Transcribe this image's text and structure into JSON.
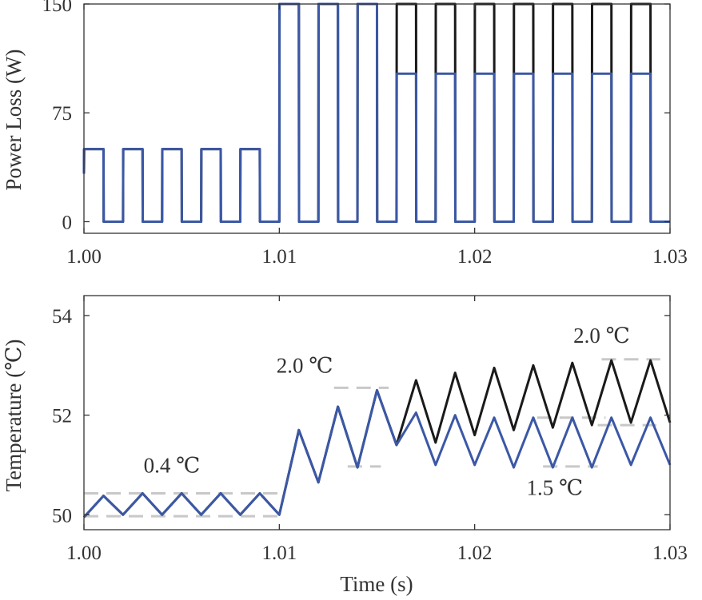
{
  "chart_data": [
    {
      "type": "line",
      "title": "",
      "xlabel": "",
      "ylabel": "Power Loss (W)",
      "xlim": [
        1.0,
        1.03
      ],
      "ylim": [
        -8,
        150
      ],
      "xticks": [
        1.0,
        1.01,
        1.02,
        1.03
      ],
      "xtick_labels": [
        "1.00",
        "1.01",
        "1.02",
        "1.03"
      ],
      "yticks": [
        0,
        75,
        150
      ],
      "ytick_labels": [
        "0",
        "75",
        "150"
      ],
      "grid": false,
      "series": [
        {
          "color": "#1a1a1a",
          "description": "square-wave power loss, high portion (150 W pulses) after t = 1.016 s",
          "x": [
            1.0,
            1.00001,
            1.001,
            1.00101,
            1.002,
            1.00201,
            1.003,
            1.00301,
            1.004,
            1.00401,
            1.005,
            1.00501,
            1.006,
            1.00601,
            1.007,
            1.00701,
            1.008,
            1.00801,
            1.009,
            1.00901,
            1.01,
            1.01001,
            1.011,
            1.01101,
            1.012,
            1.01201,
            1.013,
            1.01301,
            1.014,
            1.01401,
            1.015,
            1.01501,
            1.016,
            1.01601,
            1.017,
            1.01701,
            1.018,
            1.01801,
            1.019,
            1.01901,
            1.02,
            1.02001,
            1.021,
            1.02101,
            1.022,
            1.02201,
            1.023,
            1.02301,
            1.024,
            1.02401,
            1.025,
            1.02501,
            1.026,
            1.02601,
            1.027,
            1.02701,
            1.028,
            1.02801,
            1.029,
            1.02901,
            1.03
          ],
          "y": [
            33,
            50,
            50,
            0,
            0,
            50,
            50,
            0,
            0,
            50,
            50,
            0,
            0,
            50,
            50,
            0,
            0,
            50,
            50,
            0,
            0,
            150,
            150,
            0,
            0,
            150,
            150,
            0,
            0,
            150,
            150,
            0,
            0,
            150,
            150,
            0,
            0,
            150,
            150,
            0,
            0,
            150,
            150,
            0,
            0,
            150,
            150,
            0,
            0,
            150,
            150,
            0,
            0,
            150,
            150,
            0,
            0,
            150,
            150,
            0,
            0
          ]
        },
        {
          "color": "#3b58a6",
          "description": "square-wave power loss, 100 W pulses after t = 1.016 s",
          "x": [
            1.0,
            1.00001,
            1.001,
            1.00101,
            1.002,
            1.00201,
            1.003,
            1.00301,
            1.004,
            1.00401,
            1.005,
            1.00501,
            1.006,
            1.00601,
            1.007,
            1.00701,
            1.008,
            1.00801,
            1.009,
            1.00901,
            1.01,
            1.01001,
            1.011,
            1.01101,
            1.012,
            1.01201,
            1.013,
            1.01301,
            1.014,
            1.01401,
            1.015,
            1.01501,
            1.016,
            1.01601,
            1.017,
            1.01701,
            1.018,
            1.01801,
            1.019,
            1.01901,
            1.02,
            1.02001,
            1.021,
            1.02101,
            1.022,
            1.02201,
            1.023,
            1.02301,
            1.024,
            1.02401,
            1.025,
            1.02501,
            1.026,
            1.02601,
            1.027,
            1.02701,
            1.028,
            1.02801,
            1.029,
            1.02901,
            1.03
          ],
          "y": [
            33,
            50,
            50,
            0,
            0,
            50,
            50,
            0,
            0,
            50,
            50,
            0,
            0,
            50,
            50,
            0,
            0,
            50,
            50,
            0,
            0,
            150,
            150,
            0,
            0,
            150,
            150,
            0,
            0,
            150,
            150,
            0,
            0,
            102,
            102,
            0,
            0,
            102,
            102,
            0,
            0,
            102,
            102,
            0,
            0,
            102,
            102,
            0,
            0,
            102,
            102,
            0,
            0,
            102,
            102,
            0,
            0,
            102,
            102,
            0,
            0
          ]
        }
      ]
    },
    {
      "type": "line",
      "title": "",
      "xlabel": "Time (s)",
      "ylabel": "Temperature (℃)",
      "xlim": [
        1.0,
        1.03
      ],
      "ylim": [
        49.7,
        54.4
      ],
      "xticks": [
        1.0,
        1.01,
        1.02,
        1.03
      ],
      "xtick_labels": [
        "1.00",
        "1.01",
        "1.02",
        "1.03"
      ],
      "yticks": [
        50,
        52,
        54
      ],
      "ytick_labels": [
        "50",
        "52",
        "54"
      ],
      "grid": false,
      "series": [
        {
          "color": "#1a1a1a",
          "description": "junction temperature, black case",
          "x": [
            1.0,
            1.001,
            1.002,
            1.003,
            1.004,
            1.005,
            1.006,
            1.007,
            1.008,
            1.009,
            1.01,
            1.011,
            1.012,
            1.013,
            1.014,
            1.015,
            1.016,
            1.017,
            1.018,
            1.019,
            1.02,
            1.021,
            1.022,
            1.023,
            1.024,
            1.025,
            1.026,
            1.027,
            1.028,
            1.029,
            1.03
          ],
          "y": [
            49.95,
            50.38,
            50.0,
            50.43,
            50.0,
            50.43,
            50.0,
            50.43,
            50.0,
            50.43,
            50.0,
            51.7,
            50.65,
            52.17,
            50.95,
            52.5,
            51.4,
            52.7,
            51.45,
            52.85,
            51.6,
            52.95,
            51.7,
            53.0,
            51.75,
            53.05,
            51.8,
            53.1,
            51.85,
            53.1,
            51.85
          ]
        },
        {
          "color": "#3b58a6",
          "description": "junction temperature, blue case",
          "x": [
            1.0,
            1.001,
            1.002,
            1.003,
            1.004,
            1.005,
            1.006,
            1.007,
            1.008,
            1.009,
            1.01,
            1.011,
            1.012,
            1.013,
            1.014,
            1.015,
            1.016,
            1.017,
            1.018,
            1.019,
            1.02,
            1.021,
            1.022,
            1.023,
            1.024,
            1.025,
            1.026,
            1.027,
            1.028,
            1.029,
            1.03
          ],
          "y": [
            49.95,
            50.38,
            50.0,
            50.43,
            50.0,
            50.43,
            50.0,
            50.43,
            50.0,
            50.43,
            50.0,
            51.7,
            50.65,
            52.17,
            50.95,
            52.5,
            51.4,
            52.05,
            51.0,
            52.0,
            51.0,
            51.95,
            50.95,
            51.95,
            50.95,
            51.95,
            50.95,
            51.95,
            51.0,
            51.95,
            51.0
          ]
        }
      ],
      "annotations": [
        {
          "text": "0.4 ℃",
          "x": 1.0045,
          "y": 50.85
        },
        {
          "text": "2.0 ℃",
          "x": 1.0113,
          "y": 52.85
        },
        {
          "text": "2.0 ℃",
          "x": 1.0265,
          "y": 53.45
        },
        {
          "text": "1.5 ℃",
          "x": 1.0241,
          "y": 50.4
        }
      ],
      "guide_lines": [
        {
          "x": [
            1.0,
            1.01
          ],
          "y": 50.43
        },
        {
          "x": [
            1.0,
            1.01
          ],
          "y": 49.97
        },
        {
          "x": [
            1.0128,
            1.0156
          ],
          "y": 52.55
        },
        {
          "x": [
            1.0135,
            1.0152
          ],
          "y": 50.97
        },
        {
          "x": [
            1.0232,
            1.0267
          ],
          "y": 51.95
        },
        {
          "x": [
            1.0235,
            1.0263
          ],
          "y": 50.97
        },
        {
          "x": [
            1.0265,
            1.0295
          ],
          "y": 53.12
        },
        {
          "x": [
            1.0263,
            1.0293
          ],
          "y": 51.8
        }
      ]
    }
  ]
}
